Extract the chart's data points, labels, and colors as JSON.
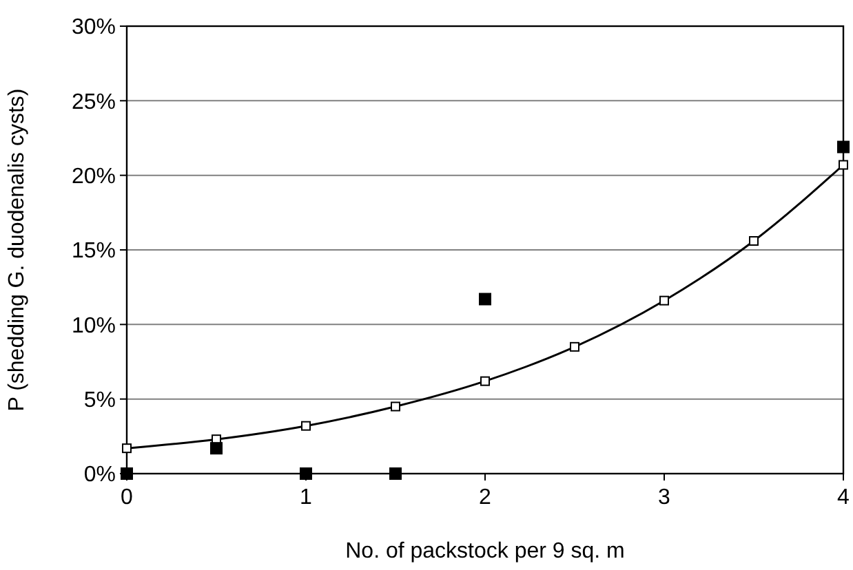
{
  "chart_data": {
    "type": "line",
    "xlabel": "No. of packstock per 9 sq. m",
    "ylabel": "P (shedding G. duodenalis cysts)",
    "xlim": [
      0,
      4
    ],
    "xticks": [
      0,
      1,
      2,
      3,
      4
    ],
    "ylim": [
      0,
      30
    ],
    "yticks": [
      {
        "value": 0,
        "label": "0%"
      },
      {
        "value": 5,
        "label": "5%"
      },
      {
        "value": 10,
        "label": "10%"
      },
      {
        "value": 15,
        "label": "15%"
      },
      {
        "value": 20,
        "label": "20%"
      },
      {
        "value": 25,
        "label": "25%"
      },
      {
        "value": 30,
        "label": "30%"
      }
    ],
    "grid": "y",
    "marker": "square",
    "series": [
      {
        "color": "#000000",
        "x": [
          0,
          0.5,
          1,
          1.5,
          2,
          2.5,
          3,
          3.5,
          4
        ],
        "values": [
          1.7,
          2.3,
          3.2,
          4.5,
          6.2,
          8.5,
          11.6,
          15.6,
          20.7
        ]
      },
      {
        "type": "scatter",
        "color": "#000000",
        "x": [
          0,
          0.5,
          1,
          1.5,
          2,
          4
        ],
        "values": [
          0,
          1.7,
          0,
          0,
          11.7,
          21.9
        ]
      }
    ]
  }
}
